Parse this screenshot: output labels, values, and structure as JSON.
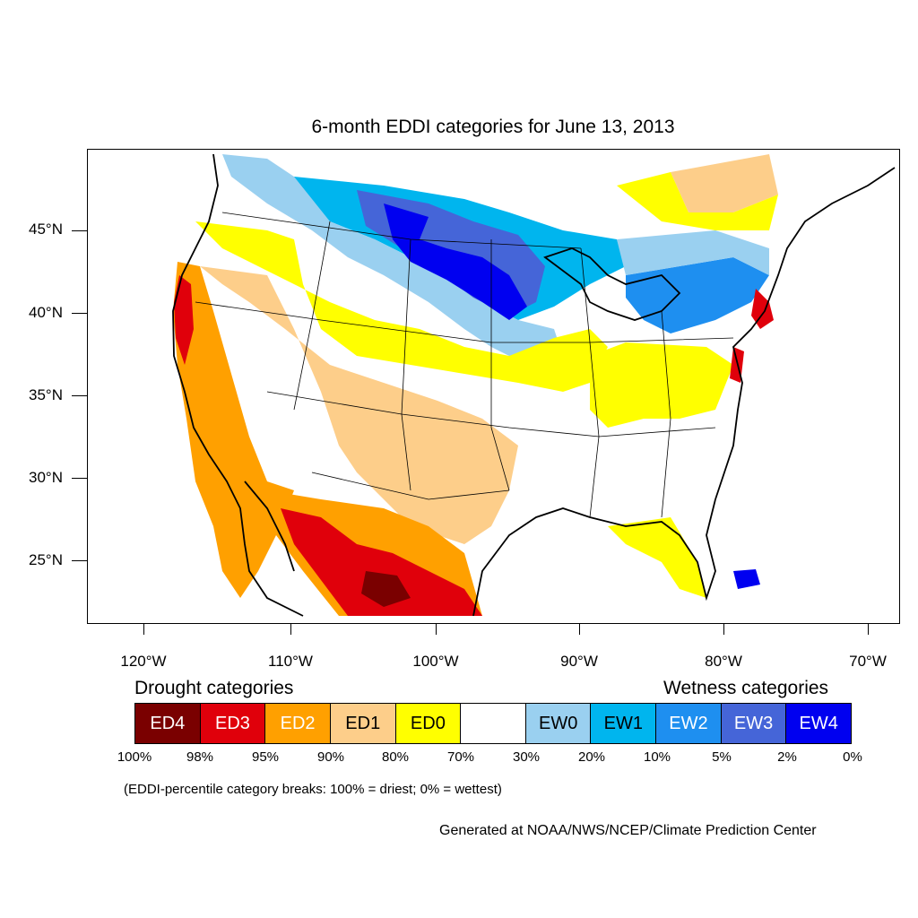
{
  "title": "6-month EDDI categories for June 13, 2013",
  "map": {
    "lat_labels": [
      "45°N",
      "40°N",
      "35°N",
      "30°N",
      "25°N"
    ],
    "lon_labels": [
      "120°W",
      "110°W",
      "100°W",
      "90°W",
      "80°W",
      "70°W"
    ],
    "colors": {
      "ED4": "#7a0000",
      "ED3": "#e0000b",
      "ED2": "#ffa000",
      "ED1": "#fdce8a",
      "ED0": "#ffff00",
      "neutral": "#ffffff",
      "EW0": "#9ad0f0",
      "EW1": "#00b5ee",
      "EW2": "#1e8ff0",
      "EW3": "#4565d8",
      "EW4": "#0000f0"
    }
  },
  "legend": {
    "drought_heading": "Drought categories",
    "wetness_heading": "Wetness categories",
    "categories": [
      {
        "label": "ED4",
        "color": "#7a0000",
        "text_color": "#ffffff"
      },
      {
        "label": "ED3",
        "color": "#e0000b",
        "text_color": "#ffffff"
      },
      {
        "label": "ED2",
        "color": "#ffa000",
        "text_color": "#ffffff"
      },
      {
        "label": "ED1",
        "color": "#fdce8a",
        "text_color": "#000000"
      },
      {
        "label": "ED0",
        "color": "#ffff00",
        "text_color": "#000000"
      },
      {
        "label": "",
        "color": "#ffffff",
        "text_color": "#000000"
      },
      {
        "label": "EW0",
        "color": "#9ad0f0",
        "text_color": "#000000"
      },
      {
        "label": "EW1",
        "color": "#00b5ee",
        "text_color": "#000000"
      },
      {
        "label": "EW2",
        "color": "#1e8ff0",
        "text_color": "#ffffff"
      },
      {
        "label": "EW3",
        "color": "#4565d8",
        "text_color": "#ffffff"
      },
      {
        "label": "EW4",
        "color": "#0000f0",
        "text_color": "#ffffff"
      }
    ],
    "percentiles": [
      "100%",
      "98%",
      "95%",
      "90%",
      "80%",
      "70%",
      "30%",
      "20%",
      "10%",
      "5%",
      "2%",
      "0%"
    ]
  },
  "note": "(EDDI-percentile category breaks: 100% = driest; 0% = wettest)",
  "credit": "Generated at NOAA/NWS/NCEP/Climate Prediction Center"
}
